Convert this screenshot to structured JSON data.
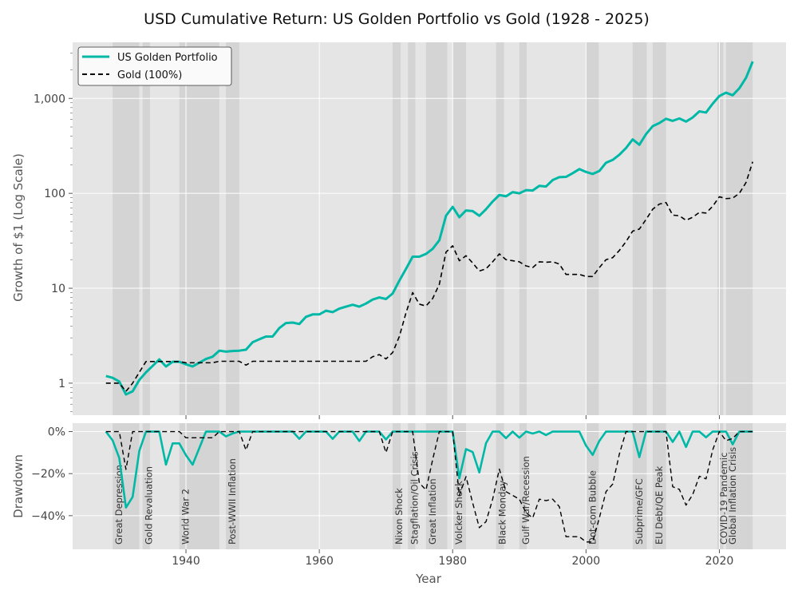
{
  "chart_data": [
    {
      "type": "line",
      "title": "USD Cumulative Return: US Golden Portfolio vs Gold (1928 - 2025)",
      "ylabel": "Growth of $1 (Log Scale)",
      "yscale": "log",
      "ylim": [
        0.46,
        3900
      ],
      "xlim": [
        1923,
        2030
      ],
      "yticks": [
        1,
        10,
        100,
        1000
      ],
      "ytick_labels": [
        "1",
        "10",
        "100",
        "1,000"
      ],
      "grid": true,
      "legend_placement": "top-left",
      "x_start": 1928,
      "series": [
        {
          "name": "US Golden Portfolio",
          "color": "#00b8a6",
          "style": "solid",
          "values": [
            1.19,
            1.14,
            1.04,
            0.76,
            0.82,
            1.08,
            1.3,
            1.52,
            1.78,
            1.5,
            1.68,
            1.68,
            1.58,
            1.5,
            1.64,
            1.8,
            1.9,
            2.2,
            2.15,
            2.18,
            2.2,
            2.25,
            2.7,
            2.9,
            3.1,
            3.1,
            3.8,
            4.3,
            4.35,
            4.2,
            5.0,
            5.3,
            5.3,
            5.8,
            5.6,
            6.1,
            6.4,
            6.7,
            6.4,
            6.9,
            7.6,
            8.0,
            7.7,
            8.8,
            12,
            16,
            21.5,
            21.5,
            23,
            26,
            32,
            58,
            72,
            56,
            66,
            65,
            58,
            68,
            82,
            96,
            93,
            103,
            100,
            108,
            107,
            120,
            118,
            138,
            148,
            149,
            163,
            180,
            168,
            160,
            172,
            210,
            225,
            255,
            300,
            370,
            325,
            420,
            510,
            550,
            610,
            580,
            615,
            570,
            630,
            730,
            710,
            880,
            1060,
            1150,
            1080,
            1280,
            1650,
            2450
          ]
        },
        {
          "name": "Gold (100%)",
          "color": "#000000",
          "style": "dashed",
          "values": [
            1.0,
            1.0,
            1.0,
            0.82,
            1.0,
            1.3,
            1.69,
            1.69,
            1.69,
            1.69,
            1.69,
            1.69,
            1.64,
            1.64,
            1.64,
            1.64,
            1.64,
            1.7,
            1.7,
            1.7,
            1.7,
            1.55,
            1.7,
            1.7,
            1.7,
            1.7,
            1.7,
            1.7,
            1.7,
            1.7,
            1.7,
            1.7,
            1.7,
            1.7,
            1.7,
            1.7,
            1.7,
            1.7,
            1.7,
            1.7,
            1.9,
            2.0,
            1.8,
            2.1,
            3.1,
            5.5,
            9.0,
            6.8,
            6.5,
            7.8,
            11,
            24,
            28,
            19.5,
            22,
            18.5,
            15.2,
            16,
            19,
            23,
            20,
            19.5,
            19,
            17.2,
            16.5,
            19,
            18.8,
            19,
            18,
            14,
            14,
            14,
            13.3,
            13.3,
            16.5,
            20,
            21,
            25,
            31,
            40,
            42,
            53,
            68,
            77,
            80,
            59,
            58,
            52,
            56,
            63,
            62,
            73,
            92,
            88,
            89,
            100,
            130,
            215
          ]
        }
      ]
    },
    {
      "type": "line",
      "title": "",
      "xlabel": "Year",
      "ylabel": "Drawdown",
      "ylim": [
        -56,
        4
      ],
      "yticks": [
        0,
        -20,
        -40
      ],
      "ytick_labels": [
        "0%",
        "−20%",
        "−40%"
      ],
      "xticks": [
        1940,
        1960,
        1980,
        2000,
        2020
      ],
      "xtick_labels": [
        "1940",
        "1960",
        "1980",
        "2000",
        "2020"
      ],
      "grid": true,
      "note_source": "drawdown of each series from its running peak, in percent"
    }
  ],
  "events": [
    {
      "label": "Great Depression",
      "start": 1929,
      "end": 1933
    },
    {
      "label": "Gold Revaluation",
      "start": 1933.5,
      "end": 1934.6
    },
    {
      "label": "World War 2",
      "start": 1939,
      "end": 1945
    },
    {
      "label": "Post-WWII Inflation",
      "start": 1946,
      "end": 1948
    },
    {
      "label": "Nixon Shock",
      "start": 1971,
      "end": 1972.2
    },
    {
      "label": "Stagflation/Oil Crisis",
      "start": 1973.3,
      "end": 1974.4
    },
    {
      "label": "Great Inflation",
      "start": 1976,
      "end": 1979.2
    },
    {
      "label": "Volcker Shock",
      "start": 1980,
      "end": 1982
    },
    {
      "label": "Black Monday",
      "start": 1986.5,
      "end": 1987.7
    },
    {
      "label": "Gulf War/Recession",
      "start": 1990,
      "end": 1991.1
    },
    {
      "label": "Dot-com Bubble",
      "start": 2000,
      "end": 2001.9
    },
    {
      "label": "Subprime/GFC",
      "start": 2007,
      "end": 2009.1
    },
    {
      "label": "EU Debt/QE Peak",
      "start": 2010,
      "end": 2012
    },
    {
      "label": "COVID-19 Pandemic",
      "start": 2019.7,
      "end": 2020.6
    },
    {
      "label": "Global Inflation Crisis",
      "start": 2021,
      "end": 2025
    }
  ],
  "colors": {
    "panel_bg": "#e5e5e5",
    "event_shade": "#d4d4d4",
    "grid": "#ffffff",
    "text": "#444444"
  }
}
